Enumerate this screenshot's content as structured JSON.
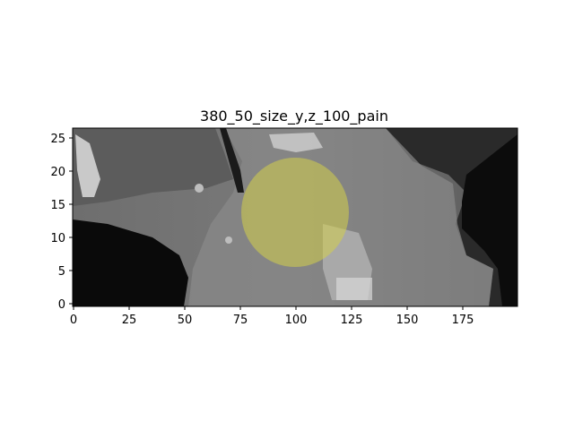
{
  "title": "380_50_size_y,z_100_pain",
  "image": {
    "description_type": "CT sagittal slice (grayscale) with overlay",
    "overlay_color": "#d4d04a",
    "overlay_opacity": 0.55
  },
  "axes": {
    "x": {
      "range": [
        0,
        199
      ],
      "ticks": [
        0,
        25,
        50,
        75,
        100,
        125,
        150,
        175
      ]
    },
    "y": {
      "range": [
        0,
        26
      ],
      "ticks": [
        0,
        5,
        10,
        15,
        20,
        25
      ]
    }
  },
  "overlay_region": {
    "center_x": 100,
    "center_y": 14,
    "radius_x": 24,
    "radius_y": 8.5
  }
}
